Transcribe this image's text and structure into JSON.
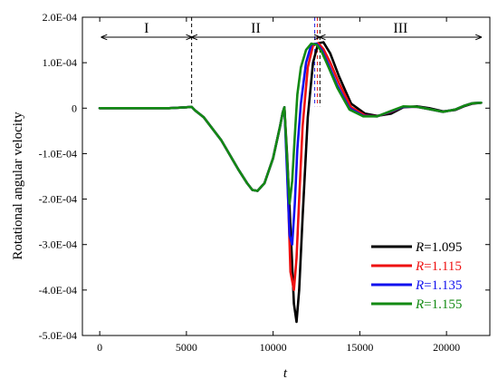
{
  "chart_data": {
    "type": "line",
    "xlabel": "t",
    "ylabel": "Rotational angular velocity",
    "xlim": [
      -1000,
      22500
    ],
    "ylim": [
      -0.0005,
      0.0002
    ],
    "x_ticks": [
      0,
      5000,
      10000,
      15000,
      20000
    ],
    "x_tick_labels": [
      "0",
      "5000",
      "10000",
      "15000",
      "20000"
    ],
    "y_ticks": [
      0.0002,
      0.0001,
      0,
      -0.0001,
      -0.0002,
      -0.0003,
      -0.0004,
      -0.0005
    ],
    "y_tick_labels": [
      "2.0E-04",
      "1.0E-04",
      "0",
      "-1.0E-04",
      "-2.0E-04",
      "-3.0E-04",
      "-4.0E-04",
      "-5.0E-04"
    ],
    "legend_position": "bottom-right",
    "regions": [
      {
        "label": "I",
        "x_start": 0,
        "x_end": 5300
      },
      {
        "label": "II",
        "x_start": 5300,
        "x_end": 12700
      },
      {
        "label": "III",
        "x_start": 12700,
        "x_end": 22000
      }
    ],
    "region_dividers": [
      {
        "x": 5300,
        "color": "#000000"
      },
      {
        "x": 12400,
        "color": "#2020e0"
      },
      {
        "x": 12550,
        "color": "#e02020"
      },
      {
        "x": 12700,
        "color": "#000000"
      }
    ],
    "common_curve": {
      "x": [
        0,
        1000,
        2000,
        3000,
        4000,
        5000,
        5300,
        5500,
        6000,
        7000,
        8000,
        8500,
        8800,
        9100,
        9500,
        10000,
        10400,
        10550,
        10650
      ],
      "y": [
        0,
        0,
        0,
        0,
        0,
        2e-06,
        3e-06,
        -5e-06,
        -2e-05,
        -7e-05,
        -0.000135,
        -0.000165,
        -0.00018,
        -0.000182,
        -0.000165,
        -0.00011,
        -4e-05,
        -1e-05,
        2e-06
      ]
    },
    "series": [
      {
        "name": "R=1.095",
        "color": "#000000",
        "x": [
          10650,
          10800,
          11000,
          11200,
          11350,
          11500,
          11700,
          12000,
          12300,
          12600,
          12900,
          13300,
          13800,
          14500,
          15300,
          16000,
          16800,
          17500,
          18300,
          19000,
          19800,
          20500,
          21000,
          21500,
          22000
        ],
        "y": [
          2e-06,
          -0.0001,
          -0.00026,
          -0.00043,
          -0.00047,
          -0.0004,
          -0.00024,
          -2e-05,
          0.0001,
          0.000143,
          0.000145,
          0.00012,
          7e-05,
          1e-05,
          -1.2e-05,
          -1.7e-05,
          -1.2e-05,
          2e-06,
          4e-06,
          0,
          -7e-06,
          -4e-06,
          4e-06,
          1e-05,
          1.2e-05
        ]
      },
      {
        "name": "R=1.115",
        "color": "#ee1111",
        "x": [
          10650,
          10800,
          11000,
          11200,
          11350,
          11500,
          11700,
          12000,
          12300,
          12600,
          12900,
          13300,
          13800,
          14500,
          15300,
          16000,
          16800,
          17500,
          18300,
          19000,
          19800,
          20500,
          21000,
          21500,
          22000
        ],
        "y": [
          2e-06,
          -0.00012,
          -0.00036,
          -0.0004,
          -0.00033,
          -0.0002,
          -4e-05,
          9e-05,
          0.000138,
          0.000143,
          0.00013,
          0.0001,
          5.5e-05,
          2e-06,
          -1.6e-05,
          -1.8e-05,
          -8e-06,
          3e-06,
          3e-06,
          -2e-06,
          -8e-06,
          -3e-06,
          5e-06,
          1.1e-05,
          1.2e-05
        ]
      },
      {
        "name": "R=1.135",
        "color": "#1111ee",
        "x": [
          10650,
          10800,
          10950,
          11100,
          11250,
          11400,
          11600,
          11900,
          12200,
          12500,
          12800,
          13200,
          13700,
          14400,
          15200,
          16000,
          16800,
          17500,
          18300,
          19000,
          19800,
          20500,
          21000,
          21500,
          22000
        ],
        "y": [
          2e-06,
          -0.00014,
          -0.00028,
          -0.0003,
          -0.00021,
          -9e-05,
          1e-05,
          0.0001,
          0.00014,
          0.000142,
          0.000128,
          9.5e-05,
          5e-05,
          0,
          -1.7e-05,
          -1.8e-05,
          -7e-06,
          3e-06,
          3e-06,
          -2e-06,
          -8e-06,
          -3e-06,
          5e-06,
          1.1e-05,
          1.2e-05
        ]
      },
      {
        "name": "R=1.155",
        "color": "#138a13",
        "x": [
          10650,
          10800,
          10950,
          11100,
          11250,
          11400,
          11600,
          11900,
          12200,
          12500,
          12800,
          13200,
          13700,
          14400,
          15200,
          16000,
          16800,
          17500,
          18300,
          19000,
          19800,
          20500,
          21000,
          21500,
          22000
        ],
        "y": [
          2e-06,
          -0.00011,
          -0.00021,
          -0.00016,
          -6e-05,
          3e-05,
          9e-05,
          0.000128,
          0.000142,
          0.00014,
          0.000124,
          9e-05,
          4.5e-05,
          -3e-06,
          -1.8e-05,
          -1.8e-05,
          -6e-06,
          4e-06,
          3e-06,
          -2e-06,
          -8e-06,
          -3e-06,
          5e-06,
          1.1e-05,
          1.2e-05
        ]
      }
    ]
  }
}
